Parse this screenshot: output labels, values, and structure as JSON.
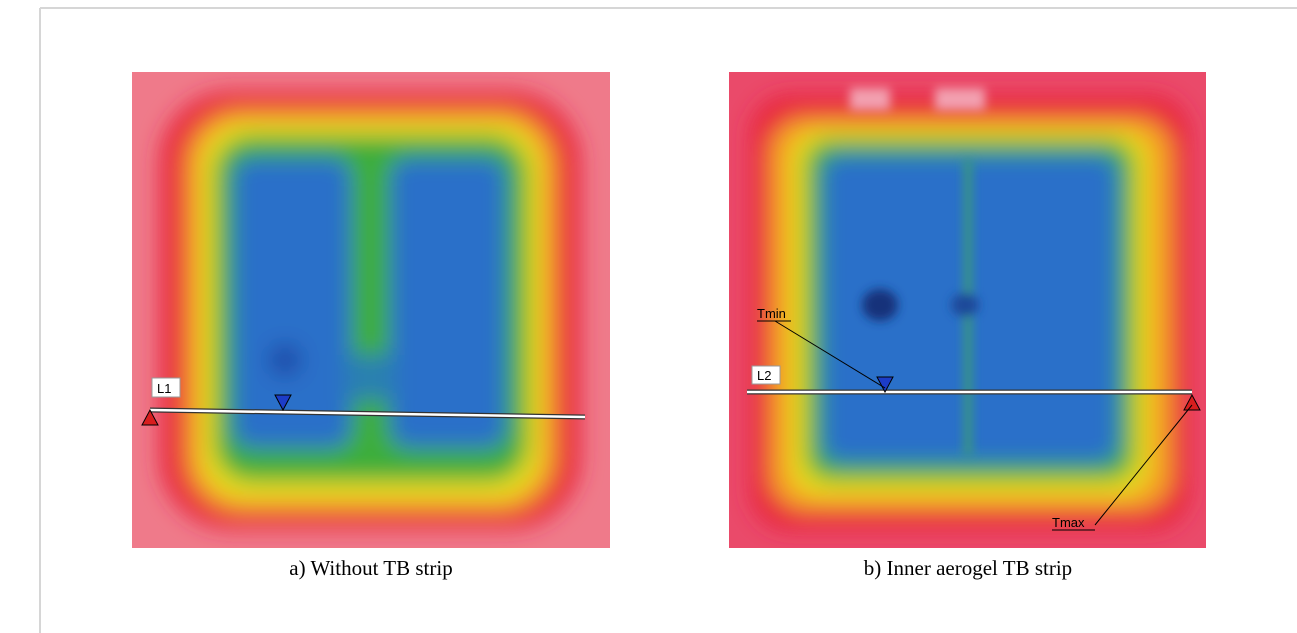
{
  "figures": [
    {
      "caption": "a) Without TB strip",
      "line_label": "L1"
    },
    {
      "caption": "b) Inner aerogel TB strip",
      "line_label": "L2",
      "annotations": [
        "Tmin",
        "Tmax"
      ]
    }
  ]
}
